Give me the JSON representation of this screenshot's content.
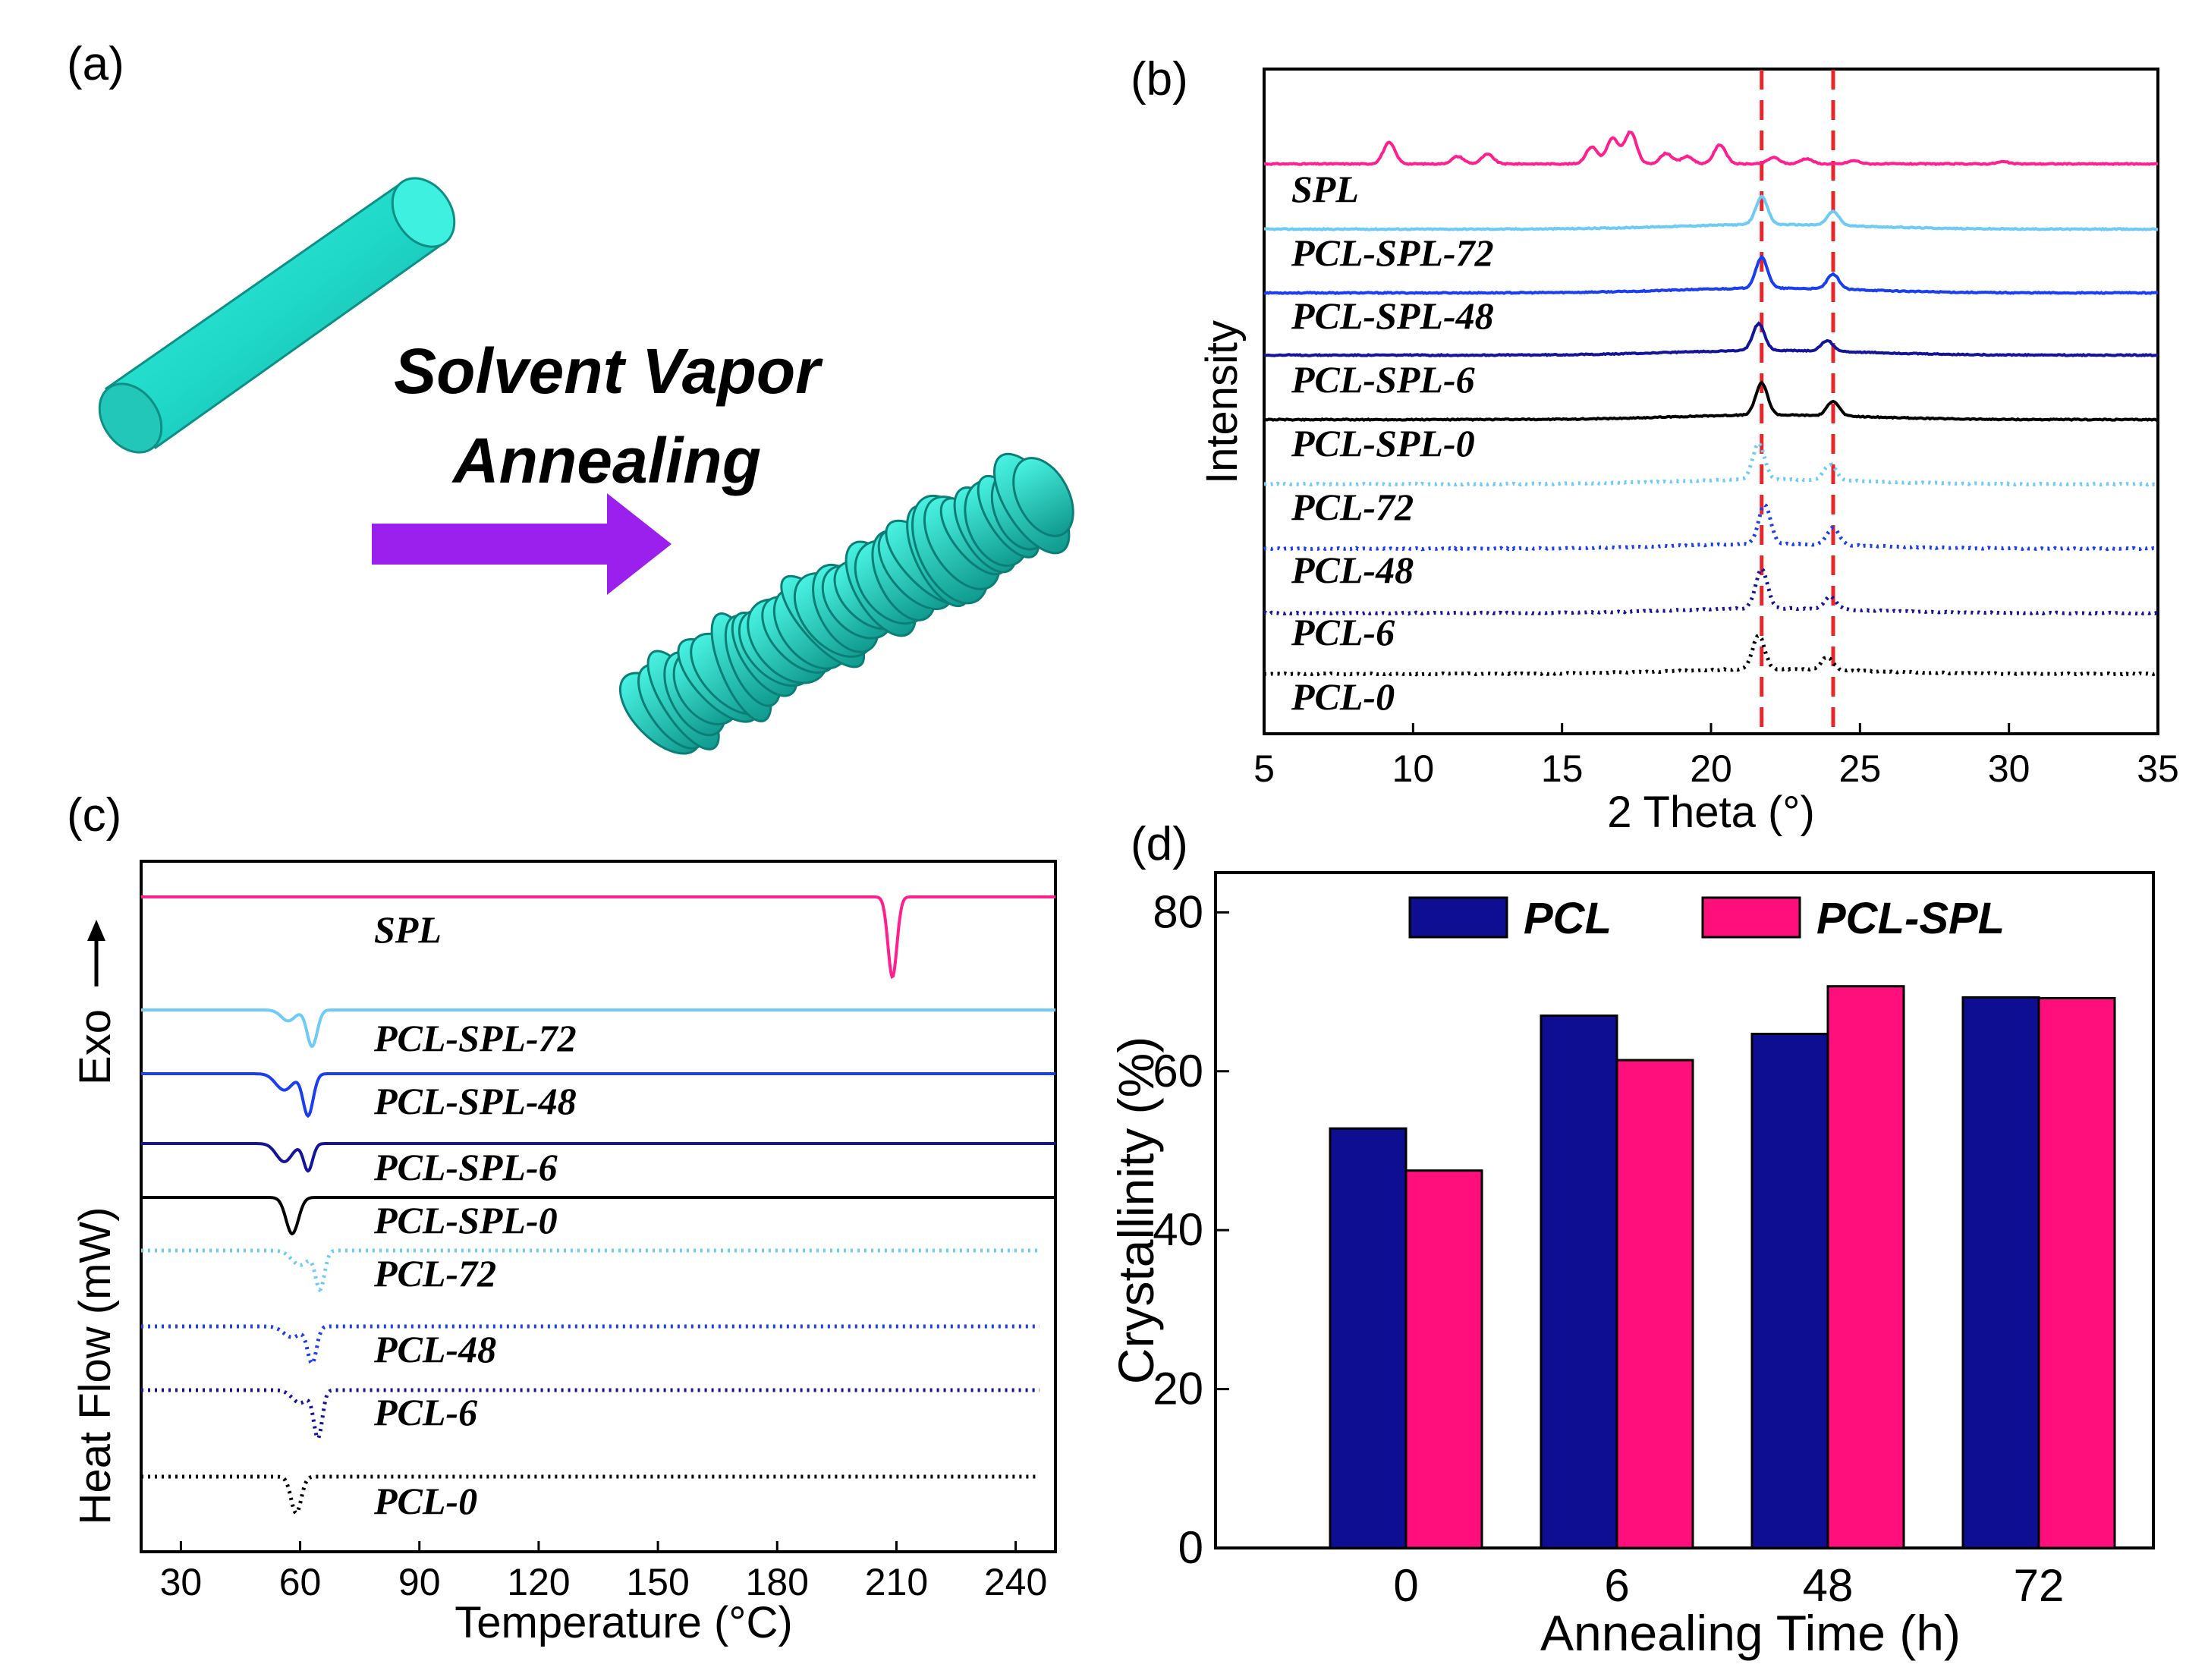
{
  "panels": {
    "a": {
      "label": "(a)",
      "caption_line1": "Solvent Vapor",
      "caption_line2": "Annealing",
      "colors": {
        "rod": "#1fd8c8",
        "arrow": "#9b20ee"
      }
    },
    "b": {
      "label": "(b)"
    },
    "c": {
      "label": "(c)",
      "exo_label": "Exo"
    },
    "d": {
      "label": "(d)"
    }
  },
  "chart_data": [
    {
      "id": "xrd",
      "type": "line",
      "xlabel": "2 Theta (°)",
      "ylabel": "Intensity",
      "xlim": [
        5,
        35
      ],
      "xticks": [
        5,
        10,
        15,
        20,
        25,
        30,
        35
      ],
      "reference_lines": [
        21.7,
        24.1
      ],
      "reference_color": "#e8262a",
      "series": [
        {
          "name": "SPL",
          "color": "#ff1f8e",
          "style": "solid",
          "peaks": [
            [
              9.2,
              1.0
            ],
            [
              11.5,
              0.35
            ],
            [
              12.5,
              0.45
            ],
            [
              16.0,
              0.8
            ],
            [
              16.7,
              1.2
            ],
            [
              17.3,
              1.5
            ],
            [
              18.5,
              0.5
            ],
            [
              19.2,
              0.35
            ],
            [
              20.3,
              0.9
            ],
            [
              22.1,
              0.3
            ],
            [
              23.2,
              0.25
            ],
            [
              24.8,
              0.15
            ],
            [
              29.8,
              0.1
            ]
          ]
        },
        {
          "name": "PCL-SPL-72",
          "color": "#6ecbf5",
          "style": "solid",
          "peaks": [
            [
              21.7,
              1.3
            ],
            [
              24.1,
              0.65
            ]
          ]
        },
        {
          "name": "PCL-SPL-48",
          "color": "#1a3ef0",
          "style": "solid",
          "peaks": [
            [
              21.7,
              1.45
            ],
            [
              24.1,
              0.7
            ]
          ]
        },
        {
          "name": "PCL-SPL-6",
          "color": "#15159a",
          "style": "solid",
          "peaks": [
            [
              21.6,
              1.25
            ],
            [
              23.9,
              0.5
            ]
          ]
        },
        {
          "name": "PCL-SPL-0",
          "color": "#000000",
          "style": "solid",
          "peaks": [
            [
              21.7,
              1.5
            ],
            [
              24.1,
              0.7
            ]
          ]
        },
        {
          "name": "PCL-72",
          "color": "#6ecbf5",
          "style": "dotted",
          "peaks": [
            [
              21.6,
              1.7
            ],
            [
              24.0,
              0.75
            ]
          ]
        },
        {
          "name": "PCL-48",
          "color": "#1a3ef0",
          "style": "dotted",
          "peaks": [
            [
              21.8,
              1.85
            ],
            [
              24.1,
              0.8
            ]
          ]
        },
        {
          "name": "PCL-6",
          "color": "#15159a",
          "style": "dotted",
          "peaks": [
            [
              21.7,
              1.85
            ],
            [
              24.0,
              0.6
            ]
          ]
        },
        {
          "name": "PCL-0",
          "color": "#000000",
          "style": "dotted",
          "peaks": [
            [
              21.6,
              1.6
            ],
            [
              23.9,
              0.6
            ]
          ]
        }
      ]
    },
    {
      "id": "dsc",
      "type": "line",
      "xlabel": "Temperature (°C)",
      "ylabel": "Heat Flow (mW)",
      "xlim": [
        20,
        250
      ],
      "xticks": [
        30,
        60,
        90,
        120,
        150,
        180,
        210,
        240
      ],
      "series": [
        {
          "name": "SPL",
          "color": "#ff1f8e",
          "style": "solid",
          "x_end": 250,
          "dips": [
            [
              209,
              2.2,
              1.6
            ]
          ]
        },
        {
          "name": "PCL-SPL-72",
          "color": "#6ecbf5",
          "style": "solid",
          "x_end": 250,
          "dips": [
            [
              57,
              0.3,
              2.5
            ],
            [
              63,
              1.0,
              1.8
            ]
          ]
        },
        {
          "name": "PCL-SPL-48",
          "color": "#1a3ef0",
          "style": "solid",
          "x_end": 250,
          "dips": [
            [
              56,
              0.45,
              3.0
            ],
            [
              62,
              1.15,
              1.8
            ]
          ]
        },
        {
          "name": "PCL-SPL-6",
          "color": "#15159a",
          "style": "solid",
          "x_end": 250,
          "dips": [
            [
              56,
              0.5,
              2.8
            ],
            [
              62,
              0.75,
              1.6
            ]
          ]
        },
        {
          "name": "PCL-SPL-0",
          "color": "#000000",
          "style": "solid",
          "x_end": 250,
          "dips": [
            [
              58,
              1.0,
              2.2
            ]
          ]
        },
        {
          "name": "PCL-72",
          "color": "#6ecbf5",
          "style": "dotted",
          "x_end": 246,
          "dips": [
            [
              60,
              0.4,
              3.0
            ],
            [
              65,
              1.05,
              1.6
            ]
          ]
        },
        {
          "name": "PCL-48",
          "color": "#1a3ef0",
          "style": "dotted",
          "x_end": 246,
          "dips": [
            [
              58,
              0.3,
              3.0
            ],
            [
              63,
              1.0,
              1.6
            ]
          ]
        },
        {
          "name": "PCL-6",
          "color": "#15159a",
          "style": "dotted",
          "x_end": 246,
          "dips": [
            [
              60,
              0.35,
              2.8
            ],
            [
              64.5,
              1.3,
              1.5
            ]
          ]
        },
        {
          "name": "PCL-0",
          "color": "#000000",
          "style": "dotted",
          "x_end": 246,
          "dips": [
            [
              59,
              1.0,
              1.8
            ]
          ]
        }
      ]
    },
    {
      "id": "crystallinity",
      "type": "bar",
      "xlabel": "Annealing Time (h)",
      "ylabel": "Crystallinity (%)",
      "ylim": [
        0,
        85
      ],
      "yticks": [
        0,
        20,
        40,
        60,
        80
      ],
      "categories": [
        "0",
        "6",
        "48",
        "72"
      ],
      "legend_position": "top",
      "series": [
        {
          "name": "PCL",
          "color": "#0e0e92",
          "values": [
            52.8,
            67.0,
            64.7,
            69.3
          ]
        },
        {
          "name": "PCL-SPL",
          "color": "#ff0f7b",
          "values": [
            47.5,
            61.4,
            70.7,
            69.2
          ]
        }
      ]
    }
  ]
}
